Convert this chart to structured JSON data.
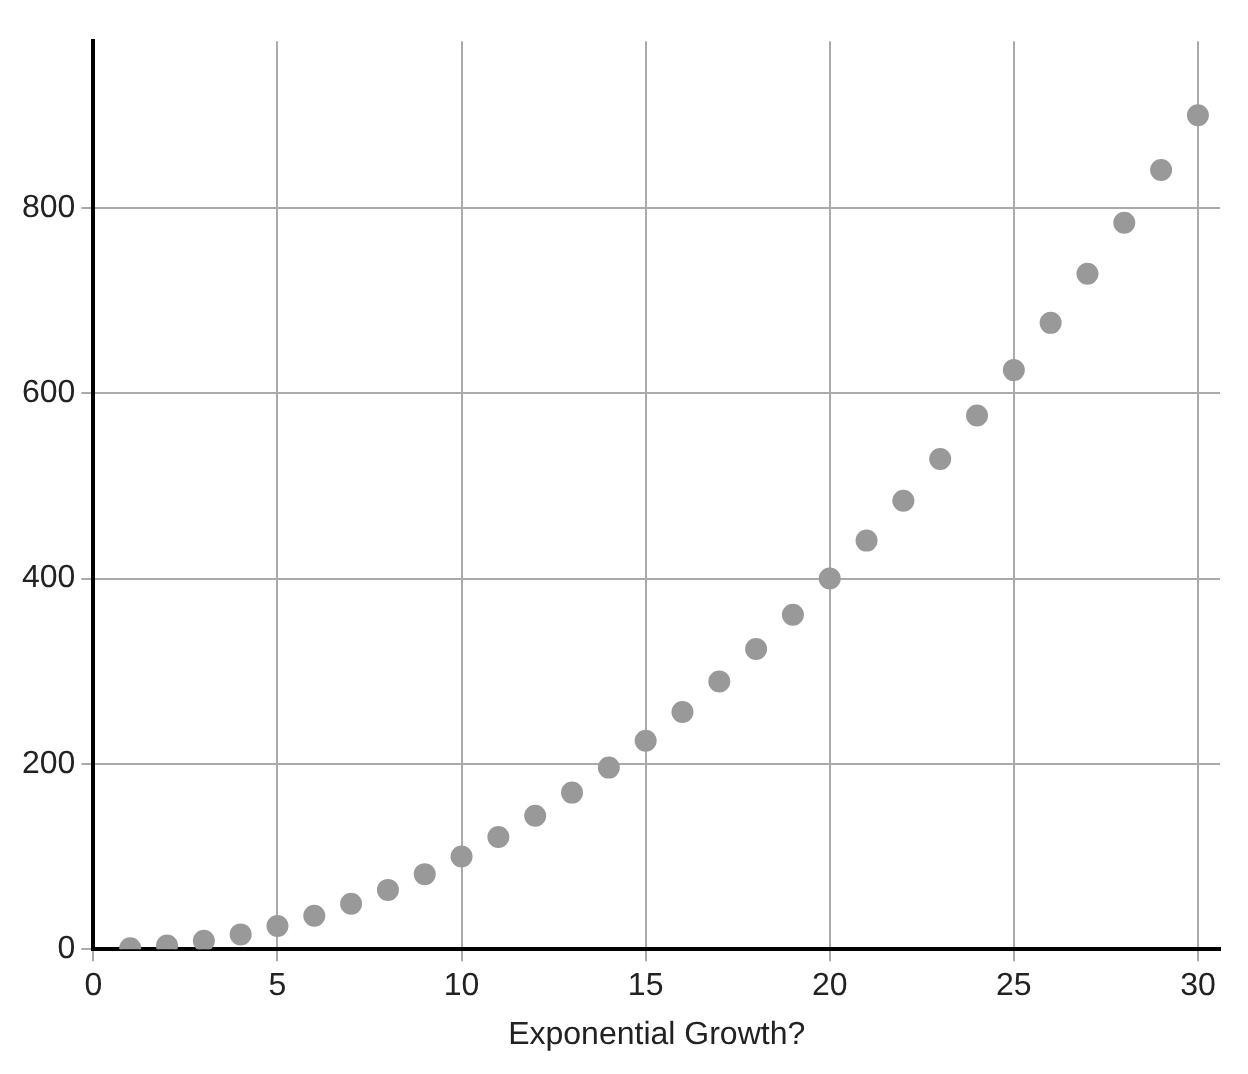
{
  "chart_data": {
    "type": "scatter",
    "xlabel": "Exponential Growth?",
    "x": [
      1,
      2,
      3,
      4,
      5,
      6,
      7,
      8,
      9,
      10,
      11,
      12,
      13,
      14,
      15,
      16,
      17,
      18,
      19,
      20,
      21,
      22,
      23,
      24,
      25,
      26,
      27,
      28,
      29,
      30
    ],
    "series": [
      {
        "color": "#999999",
        "values": [
          1,
          4,
          9,
          16,
          25,
          36,
          49,
          64,
          81,
          100,
          121,
          144,
          169,
          196,
          225,
          256,
          289,
          324,
          361,
          400,
          441,
          484,
          529,
          576,
          625,
          676,
          729,
          784,
          841,
          900
        ]
      }
    ],
    "xlim": [
      0,
      30.6
    ],
    "xticks": [
      0,
      5,
      10,
      15,
      20,
      25,
      30
    ],
    "ylim": [
      0,
      980
    ],
    "yticks": [
      0,
      200,
      400,
      600,
      800
    ],
    "grid": true,
    "legend": false,
    "marker": "circle"
  }
}
